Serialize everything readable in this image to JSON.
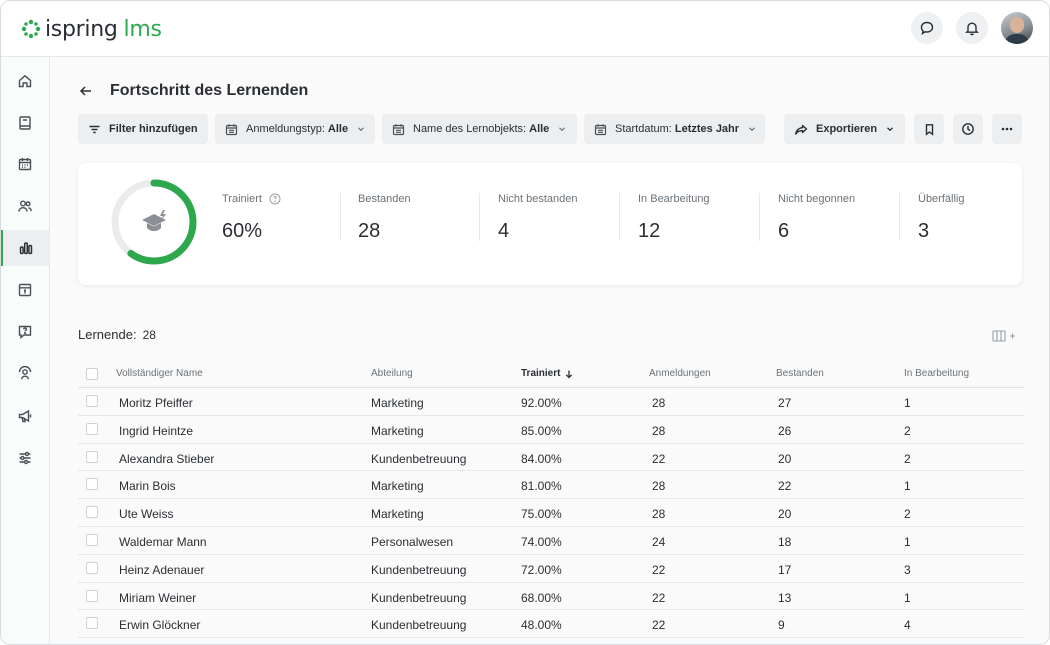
{
  "app": {
    "logo_main": "ispring",
    "logo_sub": "lms"
  },
  "header": {
    "chat_icon": "chat-bubble-icon",
    "bell_icon": "bell-icon",
    "avatar_icon": "user-avatar"
  },
  "sidebar": {
    "items": [
      {
        "name": "home",
        "icon": "home-icon"
      },
      {
        "name": "content",
        "icon": "book-icon"
      },
      {
        "name": "calendar",
        "icon": "calendar-icon"
      },
      {
        "name": "users",
        "icon": "users-icon"
      },
      {
        "name": "reports",
        "icon": "bar-chart-icon",
        "active": true
      },
      {
        "name": "archive",
        "icon": "archive-icon"
      },
      {
        "name": "questions",
        "icon": "question-chat-icon"
      },
      {
        "name": "groups",
        "icon": "group-icon"
      },
      {
        "name": "announcements",
        "icon": "megaphone-icon"
      },
      {
        "name": "settings",
        "icon": "sliders-icon"
      }
    ]
  },
  "page": {
    "title": "Fortschritt des Lernenden"
  },
  "filters": {
    "add_filter": "Filter hinzufügen",
    "enrollment_label": "Anmeldungstyp:",
    "enrollment_value": "Alle",
    "object_label": "Name des Lernobjekts:",
    "object_value": "Alle",
    "start_label": "Startdatum:",
    "start_value": "Letztes Jahr",
    "export": "Exportieren"
  },
  "stats": {
    "trained_label": "Trainiert",
    "trained_value": "60%",
    "trained_fraction": 0.6,
    "passed_label": "Bestanden",
    "passed_value": "28",
    "failed_label": "Nicht bestanden",
    "failed_value": "4",
    "in_progress_label": "In Bearbeitung",
    "in_progress_value": "12",
    "not_started_label": "Nicht begonnen",
    "not_started_value": "6",
    "overdue_label": "Überfällig",
    "overdue_value": "3"
  },
  "learners": {
    "label": "Lernende:",
    "count": "28"
  },
  "table": {
    "headers": {
      "name": "Vollständiger Name",
      "department": "Abteilung",
      "trained": "Trainiert",
      "enrollments": "Anmeldungen",
      "passed": "Bestanden",
      "in_progress": "In Bearbeitung"
    },
    "rows": [
      {
        "name": "Moritz Pfeiffer",
        "department": "Marketing",
        "trained": "92.00%",
        "enrollments": "28",
        "passed": "27",
        "in_progress": "1"
      },
      {
        "name": "Ingrid Heintze",
        "department": "Marketing",
        "trained": "85.00%",
        "enrollments": "28",
        "passed": "26",
        "in_progress": "2"
      },
      {
        "name": "Alexandra Stieber",
        "department": "Kundenbetreuung",
        "trained": "84.00%",
        "enrollments": "22",
        "passed": "20",
        "in_progress": "2"
      },
      {
        "name": "Marin Bois",
        "department": "Marketing",
        "trained": "81.00%",
        "enrollments": "28",
        "passed": "22",
        "in_progress": "1"
      },
      {
        "name": "Ute Weiss",
        "department": "Marketing",
        "trained": "75.00%",
        "enrollments": "28",
        "passed": "20",
        "in_progress": "2"
      },
      {
        "name": "Waldemar Mann",
        "department": "Personalwesen",
        "trained": "74.00%",
        "enrollments": "24",
        "passed": "18",
        "in_progress": "1"
      },
      {
        "name": "Heinz Adenauer",
        "department": "Kundenbetreuung",
        "trained": "72.00%",
        "enrollments": "22",
        "passed": "17",
        "in_progress": "3"
      },
      {
        "name": "Miriam Weiner",
        "department": "Kundenbetreuung",
        "trained": "68.00%",
        "enrollments": "22",
        "passed": "13",
        "in_progress": "1"
      },
      {
        "name": "Erwin Glöckner",
        "department": "Kundenbetreuung",
        "trained": "48.00%",
        "enrollments": "22",
        "passed": "9",
        "in_progress": "4"
      }
    ]
  },
  "colors": {
    "accent": "#2ea84f",
    "track": "#e9ebed"
  }
}
